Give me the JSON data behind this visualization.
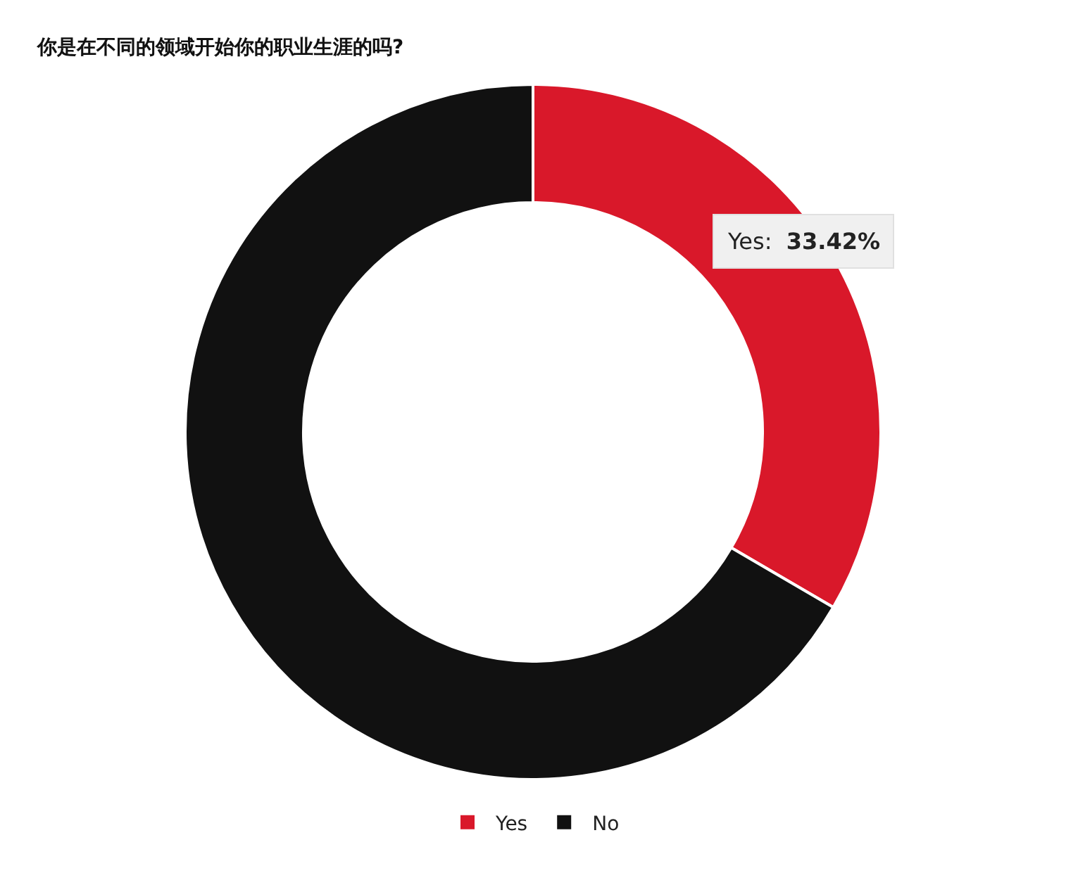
{
  "chart_data": {
    "type": "donut",
    "title": "你是在不同的领域开始你的职业生涯的吗?",
    "categories": [
      "Yes",
      "No"
    ],
    "values": [
      33.42,
      66.58
    ],
    "colors": [
      "#d9182a",
      "#111111"
    ],
    "value_labels": [
      "Yes: 33.42%",
      null
    ],
    "legend": "bottom"
  }
}
